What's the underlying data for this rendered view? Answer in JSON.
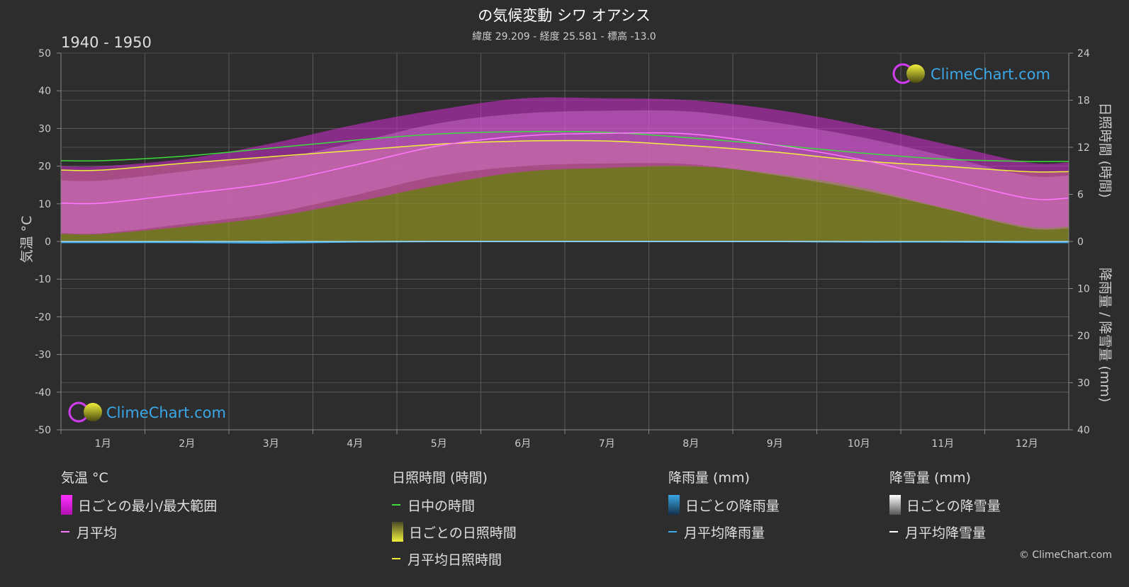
{
  "title": "の気候変動 シワ オアシス",
  "subtitle": "緯度 29.209 - 経度 25.581 - 標高 -13.0",
  "period": "1940 - 1950",
  "left_axis_label": "気温 °C",
  "right_axis_top_label": "日照時間 (時間)",
  "right_axis_bottom_label": "降雨量 / 降雪量 (mm)",
  "watermark": "ClimeChart.com",
  "copyright": "© ClimeChart.com",
  "colors": {
    "background": "#2d2d2d",
    "daylight": "#3ddc3d",
    "sunshine_line": "#f0f03c",
    "sunshine_fill": "#9c9c2a",
    "temp_range": "#c81ec8",
    "temp_avg": "#ff78ff",
    "rain": "#3aa7e6",
    "snow": "#ffffff"
  },
  "chart_data": {
    "type": "line",
    "categories": [
      "1月",
      "2月",
      "3月",
      "4月",
      "5月",
      "6月",
      "7月",
      "8月",
      "9月",
      "10月",
      "11月",
      "12月"
    ],
    "left_axis": {
      "ylim": [
        -50,
        50
      ],
      "ticks": [
        50,
        40,
        30,
        20,
        10,
        0,
        -10,
        -20,
        -30,
        -40,
        -50
      ]
    },
    "right_axis_sunshine": {
      "ylim": [
        0,
        24
      ],
      "ticks": [
        24,
        18,
        12,
        6,
        0
      ]
    },
    "right_axis_precip": {
      "ylim": [
        0,
        40
      ],
      "ticks": [
        0,
        10,
        20,
        30,
        40
      ]
    },
    "series": [
      {
        "name": "日中の時間",
        "axis": "sunshine_hours",
        "values": [
          10.3,
          10.9,
          11.9,
          12.9,
          13.7,
          14.0,
          13.9,
          13.2,
          12.3,
          11.3,
          10.5,
          10.2
        ]
      },
      {
        "name": "月平均日照時間",
        "axis": "sunshine_hours",
        "values": [
          9.1,
          10.0,
          10.8,
          11.6,
          12.4,
          12.8,
          12.8,
          12.2,
          11.4,
          10.3,
          9.6,
          8.9
        ]
      },
      {
        "name": "月平均",
        "axis": "temperature_c",
        "values": [
          10.2,
          12.7,
          15.5,
          20.3,
          25.4,
          28.0,
          28.7,
          28.5,
          25.6,
          21.8,
          16.8,
          11.5
        ]
      },
      {
        "name": "日ごとの最小/最大範囲",
        "axis": "temperature_c",
        "min": [
          2.0,
          4.0,
          6.5,
          10.5,
          15.0,
          18.5,
          19.5,
          20.0,
          18.0,
          14.5,
          9.0,
          4.0
        ],
        "max": [
          20.0,
          22.0,
          26.0,
          31.0,
          35.0,
          38.0,
          38.0,
          37.5,
          35.0,
          31.0,
          26.0,
          21.0
        ]
      },
      {
        "name": "月平均降雨量",
        "axis": "precip_mm",
        "values": [
          0.2,
          0.2,
          0.3,
          0.1,
          0.0,
          0.0,
          0.0,
          0.0,
          0.0,
          0.1,
          0.1,
          0.2
        ]
      },
      {
        "name": "月平均降雪量",
        "axis": "precip_mm",
        "values": [
          0,
          0,
          0,
          0,
          0,
          0,
          0,
          0,
          0,
          0,
          0,
          0
        ]
      }
    ],
    "grid": true
  },
  "legend": {
    "temp": {
      "title": "気温 °C",
      "range": "日ごとの最小/最大範囲",
      "avg": "月平均"
    },
    "sun": {
      "title": "日照時間 (時間)",
      "daylight": "日中の時間",
      "daily": "日ごとの日照時間",
      "avg": "月平均日照時間"
    },
    "rain": {
      "title": "降雨量 (mm)",
      "daily": "日ごとの降雨量",
      "avg": "月平均降雨量"
    },
    "snow": {
      "title": "降雪量 (mm)",
      "daily": "日ごとの降雪量",
      "avg": "月平均降雪量"
    }
  }
}
